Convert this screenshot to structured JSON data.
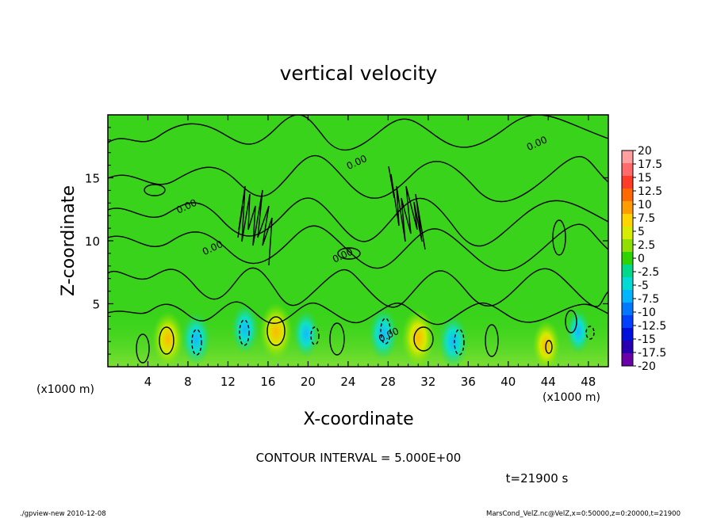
{
  "chart_data": {
    "type": "heatmap",
    "title": "vertical velocity",
    "xlabel": "X-coordinate",
    "ylabel": "Z-coordinate",
    "x_unit_left": "(x1000 m)",
    "x_unit_right": "(x1000 m)",
    "xlim": [
      0,
      50
    ],
    "ylim": [
      0,
      20
    ],
    "x_ticks": [
      4,
      8,
      12,
      16,
      20,
      24,
      28,
      32,
      36,
      40,
      44,
      48
    ],
    "y_ticks": [
      5,
      10,
      15
    ],
    "contour_interval_text": "CONTOUR INTERVAL = 5.000E+00",
    "time_text": "t=21900 s",
    "contour_labels": [
      {
        "x": 8.0,
        "y": 12.5,
        "text": "0.00"
      },
      {
        "x": 10.6,
        "y": 9.2,
        "text": "0.00"
      },
      {
        "x": 23.6,
        "y": 8.6,
        "text": "0.00"
      },
      {
        "x": 25.0,
        "y": 16.0,
        "text": "0.00"
      },
      {
        "x": 43.0,
        "y": 17.5,
        "text": "0.00"
      },
      {
        "x": 28.2,
        "y": 2.3,
        "text": "0.00"
      }
    ],
    "colorbar": {
      "labels": [
        "20",
        "17.5",
        "15",
        "12.5",
        "10",
        "7.5",
        "5",
        "2.5",
        "0",
        "-2.5",
        "-5",
        "-7.5",
        "-10",
        "-12.5",
        "-15",
        "-17.5",
        "-20"
      ],
      "colors": [
        "#ff9f9f",
        "#ff6a6a",
        "#ff3b2a",
        "#ff6a00",
        "#ff9d00",
        "#ffd400",
        "#d8ec00",
        "#8fe000",
        "#2fd400",
        "#00d88c",
        "#00dcd4",
        "#00b4ff",
        "#0078ff",
        "#0040ff",
        "#0010dc",
        "#2800b0",
        "#6a00a8"
      ]
    },
    "features": [
      {
        "x": 6.0,
        "y": 2.2,
        "value": 8,
        "kind": "updraft"
      },
      {
        "x": 8.8,
        "y": 2.2,
        "value": -7,
        "kind": "downdraft"
      },
      {
        "x": 13.7,
        "y": 3.0,
        "value": -6,
        "kind": "downdraft"
      },
      {
        "x": 16.8,
        "y": 2.8,
        "value": 9,
        "kind": "updraft"
      },
      {
        "x": 19.8,
        "y": 2.6,
        "value": -5,
        "kind": "downdraft"
      },
      {
        "x": 27.5,
        "y": 2.6,
        "value": -7,
        "kind": "downdraft"
      },
      {
        "x": 31.0,
        "y": 2.3,
        "value": 9,
        "kind": "updraft"
      },
      {
        "x": 34.5,
        "y": 2.0,
        "value": -7,
        "kind": "downdraft"
      },
      {
        "x": 43.8,
        "y": 1.7,
        "value": 6,
        "kind": "updraft"
      },
      {
        "x": 47.0,
        "y": 2.8,
        "value": -4,
        "kind": "downdraft"
      }
    ]
  },
  "footer": {
    "left": "./gpview-new   2010-12-08",
    "right": "MarsCond_VelZ.nc@VelZ,x=0:50000,z=0:20000,t=21900"
  }
}
